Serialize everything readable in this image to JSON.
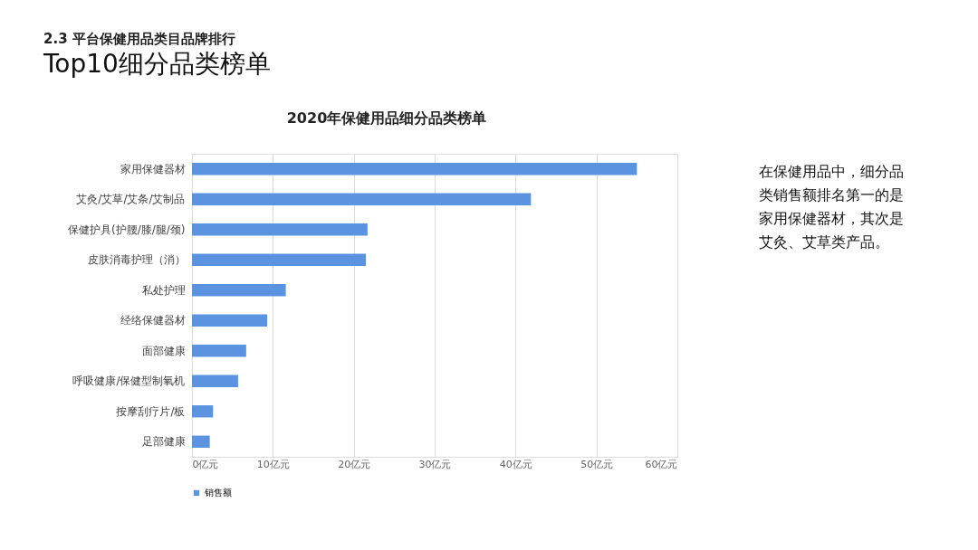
{
  "chart_data": {
    "type": "bar",
    "orientation": "horizontal",
    "title": "2020年保健用品细分品类榜单",
    "annotations": [
      "2.3 平台保健用品类目品牌排行",
      "Top10细分品类榜单",
      "在保健用品中，细分品类销售额排名第一的是家用保健器材，其次是艾灸、艾草类产品。"
    ],
    "categories": [
      "家用保健器材",
      "艾灸/艾草/艾条/艾制品",
      "保健护具(护腰/膝/腿/颈)",
      "皮肤消毒护理（消）",
      "私处护理",
      "经络保健器材",
      "面部健康",
      "呼吸健康/保健型制氧机",
      "按摩刮疗片/板",
      "足部健康"
    ],
    "series": [
      {
        "name": "销售额",
        "color": "#5b93e0",
        "values": [
          55.0,
          41.9,
          21.7,
          21.5,
          11.6,
          9.3,
          6.7,
          5.7,
          2.6,
          2.2
        ]
      }
    ],
    "xlim": [
      0,
      60
    ],
    "xticks": [
      {
        "value": 0,
        "label": "0亿元"
      },
      {
        "value": 10,
        "label": "10亿元"
      },
      {
        "value": 20,
        "label": "20亿元"
      },
      {
        "value": 30,
        "label": "30亿元"
      },
      {
        "value": 40,
        "label": "40亿元"
      },
      {
        "value": 50,
        "label": "50亿元"
      },
      {
        "value": 60,
        "label": "60亿元"
      }
    ],
    "grid": "x",
    "legend": "bottom"
  }
}
